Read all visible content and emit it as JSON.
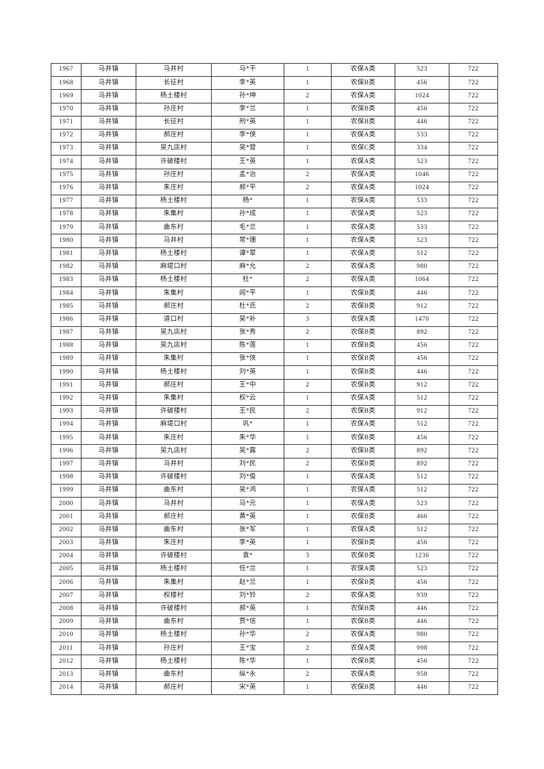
{
  "page": {
    "background_color": "#ffffff",
    "text_color": "#1f1f1f",
    "border_color": "#3b3b3b"
  },
  "table": {
    "column_keys": [
      "serial",
      "town",
      "village",
      "name",
      "count",
      "category",
      "amount",
      "code"
    ],
    "rows": [
      [
        "1967",
        "马井镇",
        "马井村",
        "马*干",
        "1",
        "农保A类",
        "523",
        "722"
      ],
      [
        "1968",
        "马井镇",
        "长征村",
        "李*英",
        "1",
        "农保B类",
        "456",
        "722"
      ],
      [
        "1969",
        "马井镇",
        "杨土楼村",
        "孙*坤",
        "2",
        "农保A类",
        "1024",
        "722"
      ],
      [
        "1970",
        "马井镇",
        "孙庄村",
        "李*兰",
        "1",
        "农保B类",
        "456",
        "722"
      ],
      [
        "1971",
        "马井镇",
        "长征村",
        "刑*英",
        "1",
        "农保B类",
        "446",
        "722"
      ],
      [
        "1972",
        "马井镇",
        "郝庄村",
        "李*侠",
        "1",
        "农保A类",
        "533",
        "722"
      ],
      [
        "1973",
        "马井镇",
        "吴九店村",
        "吴*营",
        "1",
        "农保C类",
        "334",
        "722"
      ],
      [
        "1974",
        "马井镇",
        "许破楼村",
        "王*英",
        "1",
        "农保A类",
        "523",
        "722"
      ],
      [
        "1975",
        "马井镇",
        "孙庄村",
        "孟*治",
        "2",
        "农保A类",
        "1046",
        "722"
      ],
      [
        "1976",
        "马井镇",
        "朱庄村",
        "郝*平",
        "2",
        "农保A类",
        "1024",
        "722"
      ],
      [
        "1977",
        "马井镇",
        "杨土楼村",
        "杨*",
        "1",
        "农保A类",
        "533",
        "722"
      ],
      [
        "1978",
        "马井镇",
        "朱集村",
        "孙*成",
        "1",
        "农保A类",
        "523",
        "722"
      ],
      [
        "1979",
        "马井镇",
        "曲东村",
        "毛*兰",
        "1",
        "农保A类",
        "533",
        "722"
      ],
      [
        "1980",
        "马井镇",
        "马井村",
        "常*珊",
        "1",
        "农保A类",
        "523",
        "722"
      ],
      [
        "1981",
        "马井镇",
        "杨土楼村",
        "谭*翠",
        "1",
        "农保A类",
        "512",
        "722"
      ],
      [
        "1982",
        "马井镇",
        "麻堤口村",
        "麻*允",
        "2",
        "农保A类",
        "980",
        "722"
      ],
      [
        "1983",
        "马井镇",
        "杨土楼村",
        "杜*",
        "2",
        "农保A类",
        "1064",
        "722"
      ],
      [
        "1984",
        "马井镇",
        "朱集村",
        "阎*平",
        "1",
        "农保B类",
        "446",
        "722"
      ],
      [
        "1985",
        "马井镇",
        "郝庄村",
        "杜*氏",
        "2",
        "农保B类",
        "912",
        "722"
      ],
      [
        "1986",
        "马井镇",
        "道口村",
        "吴*补",
        "3",
        "农保A类",
        "1470",
        "722"
      ],
      [
        "1987",
        "马井镇",
        "吴九店村",
        "张*秀",
        "2",
        "农保B类",
        "892",
        "722"
      ],
      [
        "1988",
        "马井镇",
        "吴九店村",
        "陈*莲",
        "1",
        "农保B类",
        "456",
        "722"
      ],
      [
        "1989",
        "马井镇",
        "朱集村",
        "张*侠",
        "1",
        "农保B类",
        "456",
        "722"
      ],
      [
        "1990",
        "马井镇",
        "杨土楼村",
        "刘*英",
        "1",
        "农保B类",
        "446",
        "722"
      ],
      [
        "1991",
        "马井镇",
        "郝庄村",
        "王*中",
        "2",
        "农保B类",
        "912",
        "722"
      ],
      [
        "1992",
        "马井镇",
        "朱集村",
        "权*云",
        "1",
        "农保A类",
        "512",
        "722"
      ],
      [
        "1993",
        "马井镇",
        "许破楼村",
        "王*民",
        "2",
        "农保B类",
        "912",
        "722"
      ],
      [
        "1994",
        "马井镇",
        "麻堤口村",
        "巩*",
        "1",
        "农保A类",
        "512",
        "722"
      ],
      [
        "1995",
        "马井镇",
        "朱庄村",
        "朱*华",
        "1",
        "农保B类",
        "456",
        "722"
      ],
      [
        "1996",
        "马井镇",
        "吴九店村",
        "吴*露",
        "2",
        "农保B类",
        "892",
        "722"
      ],
      [
        "1997",
        "马井镇",
        "马井村",
        "刘*民",
        "2",
        "农保B类",
        "892",
        "722"
      ],
      [
        "1998",
        "马井镇",
        "许破楼村",
        "刘*俊",
        "1",
        "农保A类",
        "512",
        "722"
      ],
      [
        "1999",
        "马井镇",
        "曲东村",
        "吴*鸿",
        "1",
        "农保A类",
        "512",
        "722"
      ],
      [
        "2000",
        "马井镇",
        "马井村",
        "马*元",
        "1",
        "农保A类",
        "523",
        "722"
      ],
      [
        "2001",
        "马井镇",
        "郝庄村",
        "黄*英",
        "1",
        "农保B类",
        "466",
        "722"
      ],
      [
        "2002",
        "马井镇",
        "曲东村",
        "张*军",
        "1",
        "农保A类",
        "512",
        "722"
      ],
      [
        "2003",
        "马井镇",
        "朱庄村",
        "李*英",
        "1",
        "农保B类",
        "456",
        "722"
      ],
      [
        "2004",
        "马井镇",
        "许破楼村",
        "袁*",
        "3",
        "农保B类",
        "1236",
        "722"
      ],
      [
        "2005",
        "马井镇",
        "杨土楼村",
        "任*兰",
        "1",
        "农保A类",
        "523",
        "722"
      ],
      [
        "2006",
        "马井镇",
        "朱集村",
        "赵*兰",
        "1",
        "农保B类",
        "456",
        "722"
      ],
      [
        "2007",
        "马井镇",
        "权楼村",
        "刘*铃",
        "2",
        "农保A类",
        "939",
        "722"
      ],
      [
        "2008",
        "马井镇",
        "许破楼村",
        "郝*英",
        "1",
        "农保B类",
        "446",
        "722"
      ],
      [
        "2009",
        "马井镇",
        "曲东村",
        "贾*信",
        "1",
        "农保B类",
        "446",
        "722"
      ],
      [
        "2010",
        "马井镇",
        "杨土楼村",
        "孙*华",
        "2",
        "农保A类",
        "980",
        "722"
      ],
      [
        "2011",
        "马井镇",
        "孙庄村",
        "王*宝",
        "2",
        "农保A类",
        "998",
        "722"
      ],
      [
        "2012",
        "马井镇",
        "杨土楼村",
        "陈*华",
        "1",
        "农保B类",
        "456",
        "722"
      ],
      [
        "2013",
        "马井镇",
        "曲东村",
        "纵*永",
        "2",
        "农保A类",
        "958",
        "722"
      ],
      [
        "2014",
        "马井镇",
        "郝庄村",
        "宋*英",
        "1",
        "农保B类",
        "446",
        "722"
      ]
    ]
  }
}
